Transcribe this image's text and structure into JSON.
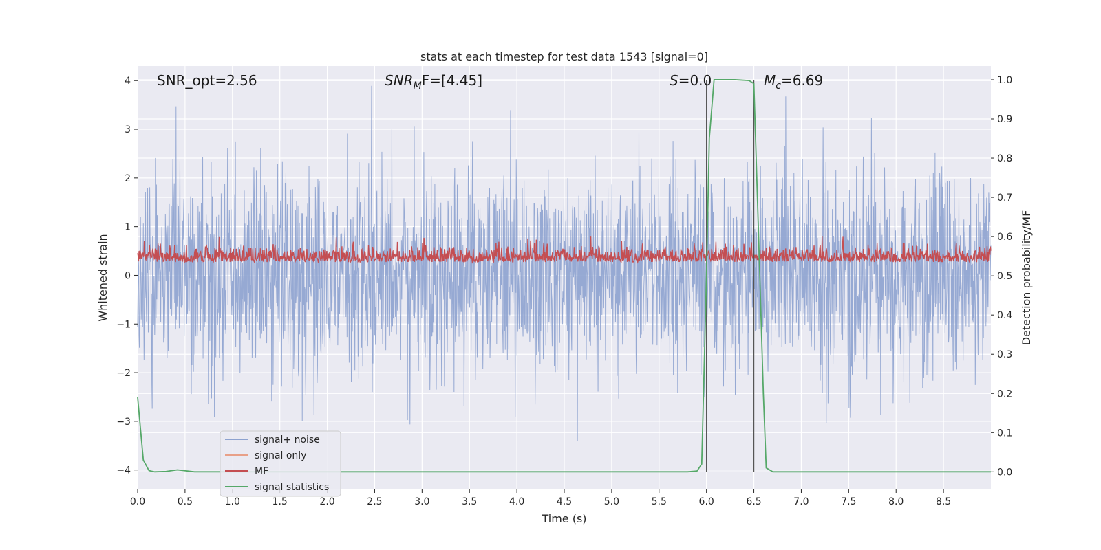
{
  "chart_data": {
    "type": "line",
    "title": "stats at each timestep for test data 1543 [signal=0]",
    "xlabel": "Time (s)",
    "ylabel_left": "Whitened strain",
    "ylabel_right": "Detection probability/MF",
    "xlim": [
      0,
      9.0
    ],
    "ylim_left": [
      -4.4,
      4.3
    ],
    "ylim_right": [
      -0.045,
      1.035
    ],
    "x_ticks": [
      0.0,
      0.5,
      1.0,
      1.5,
      2.0,
      2.5,
      3.0,
      3.5,
      4.0,
      4.5,
      5.0,
      5.5,
      6.0,
      6.5,
      7.0,
      7.5,
      8.0,
      8.5
    ],
    "x_tick_labels": [
      "0.0",
      "0.5",
      "1.0",
      "1.5",
      "2.0",
      "2.5",
      "3.0",
      "3.5",
      "4.0",
      "4.5",
      "5.0",
      "5.5",
      "6.0",
      "6.5",
      "7.0",
      "7.5",
      "8.0",
      "8.5"
    ],
    "y_left_ticks": [
      -4,
      -3,
      -2,
      -1,
      0,
      1,
      2,
      3,
      4
    ],
    "y_left_tick_labels": [
      "−4",
      "−3",
      "−2",
      "−1",
      "0",
      "1",
      "2",
      "3",
      "4"
    ],
    "y_right_ticks": [
      0.0,
      0.1,
      0.2,
      0.3,
      0.4,
      0.5,
      0.6,
      0.7,
      0.8,
      0.9,
      1.0
    ],
    "y_right_tick_labels": [
      "0.0",
      "0.1",
      "0.2",
      "0.3",
      "0.4",
      "0.5",
      "0.6",
      "0.7",
      "0.8",
      "0.9",
      "1.0"
    ],
    "grid": true,
    "legend_position": "lower-left",
    "annotations": [
      {
        "id": "snr-opt",
        "text": "SNR_opt=2.56",
        "x": 0.2,
        "y": 4.0
      },
      {
        "id": "snr-mf",
        "base": "SNR",
        "sub": "M",
        "rest": "F=[4.45]",
        "x": 2.6,
        "y": 4.0
      },
      {
        "id": "s-value",
        "base": "S",
        "sub": "",
        "rest": "=0.0",
        "x": 5.6,
        "y": 4.0
      },
      {
        "id": "mc-value",
        "base": "M",
        "sub": "c",
        "rest": "=6.69",
        "x": 6.6,
        "y": 4.0
      }
    ],
    "vertical_markers": [
      6.0,
      6.5
    ],
    "series": [
      {
        "name": "signal+ noise",
        "color": "#8da2cf",
        "style": "noise",
        "axis": "left",
        "seed": 1543
      },
      {
        "name": "signal only",
        "color": "#e8a088",
        "style": "flat",
        "axis": "left"
      },
      {
        "name": "MF",
        "color": "#c44e52",
        "style": "mf",
        "axis": "right",
        "seed": 77
      },
      {
        "name": "signal statistics",
        "color": "#55a868",
        "axis": "right",
        "x": [
          0.0,
          0.06,
          0.12,
          0.18,
          0.3,
          0.42,
          0.6,
          1.0,
          2.0,
          3.0,
          4.0,
          5.0,
          5.8,
          5.9,
          5.95,
          6.0,
          6.03,
          6.08,
          6.1,
          6.3,
          6.45,
          6.5,
          6.55,
          6.6,
          6.63,
          6.7,
          7.0,
          8.0,
          9.0
        ],
        "y": [
          0.19,
          0.03,
          0.003,
          0.0,
          0.001,
          0.005,
          0.0,
          0.0,
          0.0,
          0.0,
          0.0,
          0.0,
          0.0,
          0.002,
          0.02,
          0.5,
          0.85,
          1.0,
          1.0,
          1.0,
          0.998,
          0.99,
          0.6,
          0.2,
          0.01,
          0.0,
          0.0,
          0.0,
          0.0
        ]
      }
    ]
  }
}
